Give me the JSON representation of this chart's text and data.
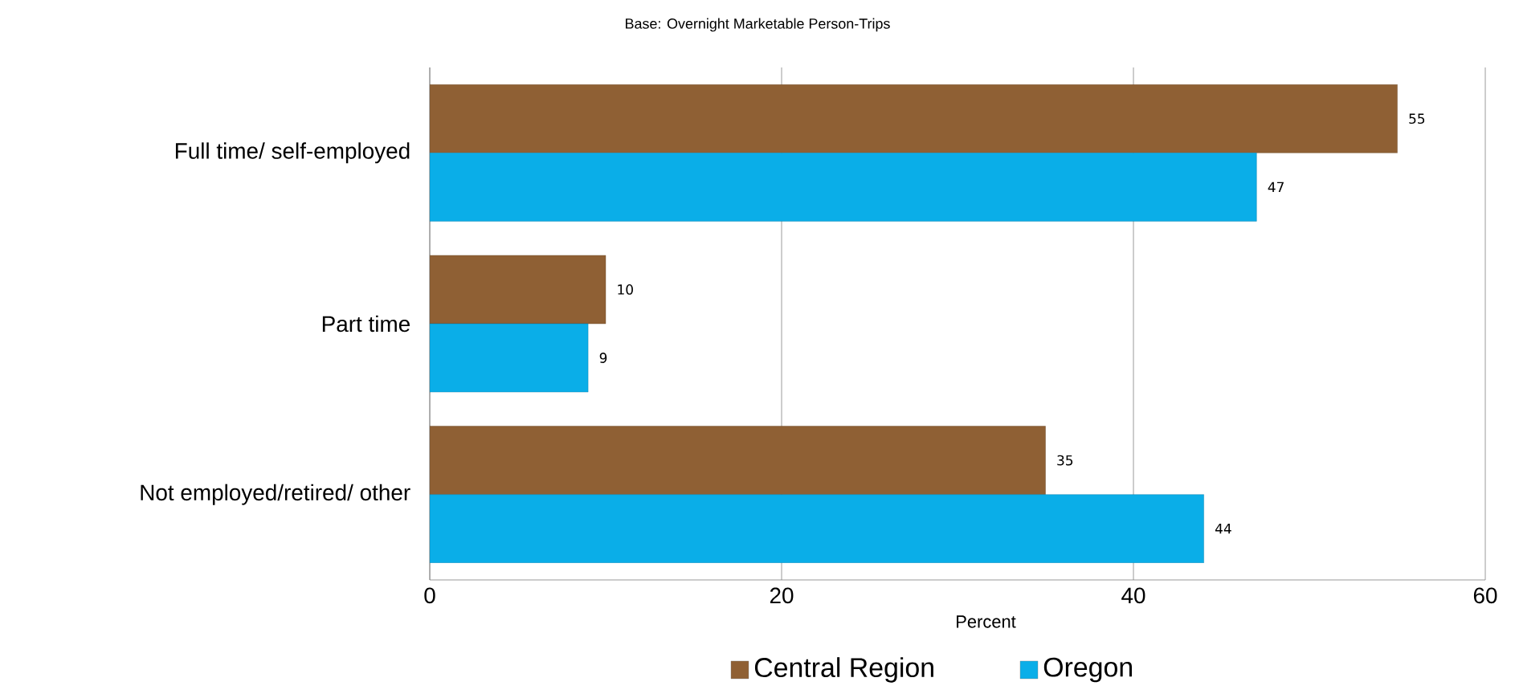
{
  "chart_data": {
    "type": "bar",
    "orientation": "horizontal",
    "title": "Base: Overnight Marketable Person-Trips",
    "xlabel": "Percent",
    "categories": [
      "Full time/ self-employed",
      "Part time",
      "Not employed/retired/ other"
    ],
    "series": [
      {
        "name": "Central Region",
        "color": "#8f6034",
        "values": [
          55,
          10,
          35
        ]
      },
      {
        "name": "Oregon",
        "color": "#0aaee8",
        "values": [
          47,
          9,
          44
        ]
      }
    ],
    "xlim": [
      0,
      60
    ],
    "xticks": [
      0,
      20,
      40,
      60
    ],
    "grid": "x",
    "legend": "bottom",
    "data_labels": true
  }
}
